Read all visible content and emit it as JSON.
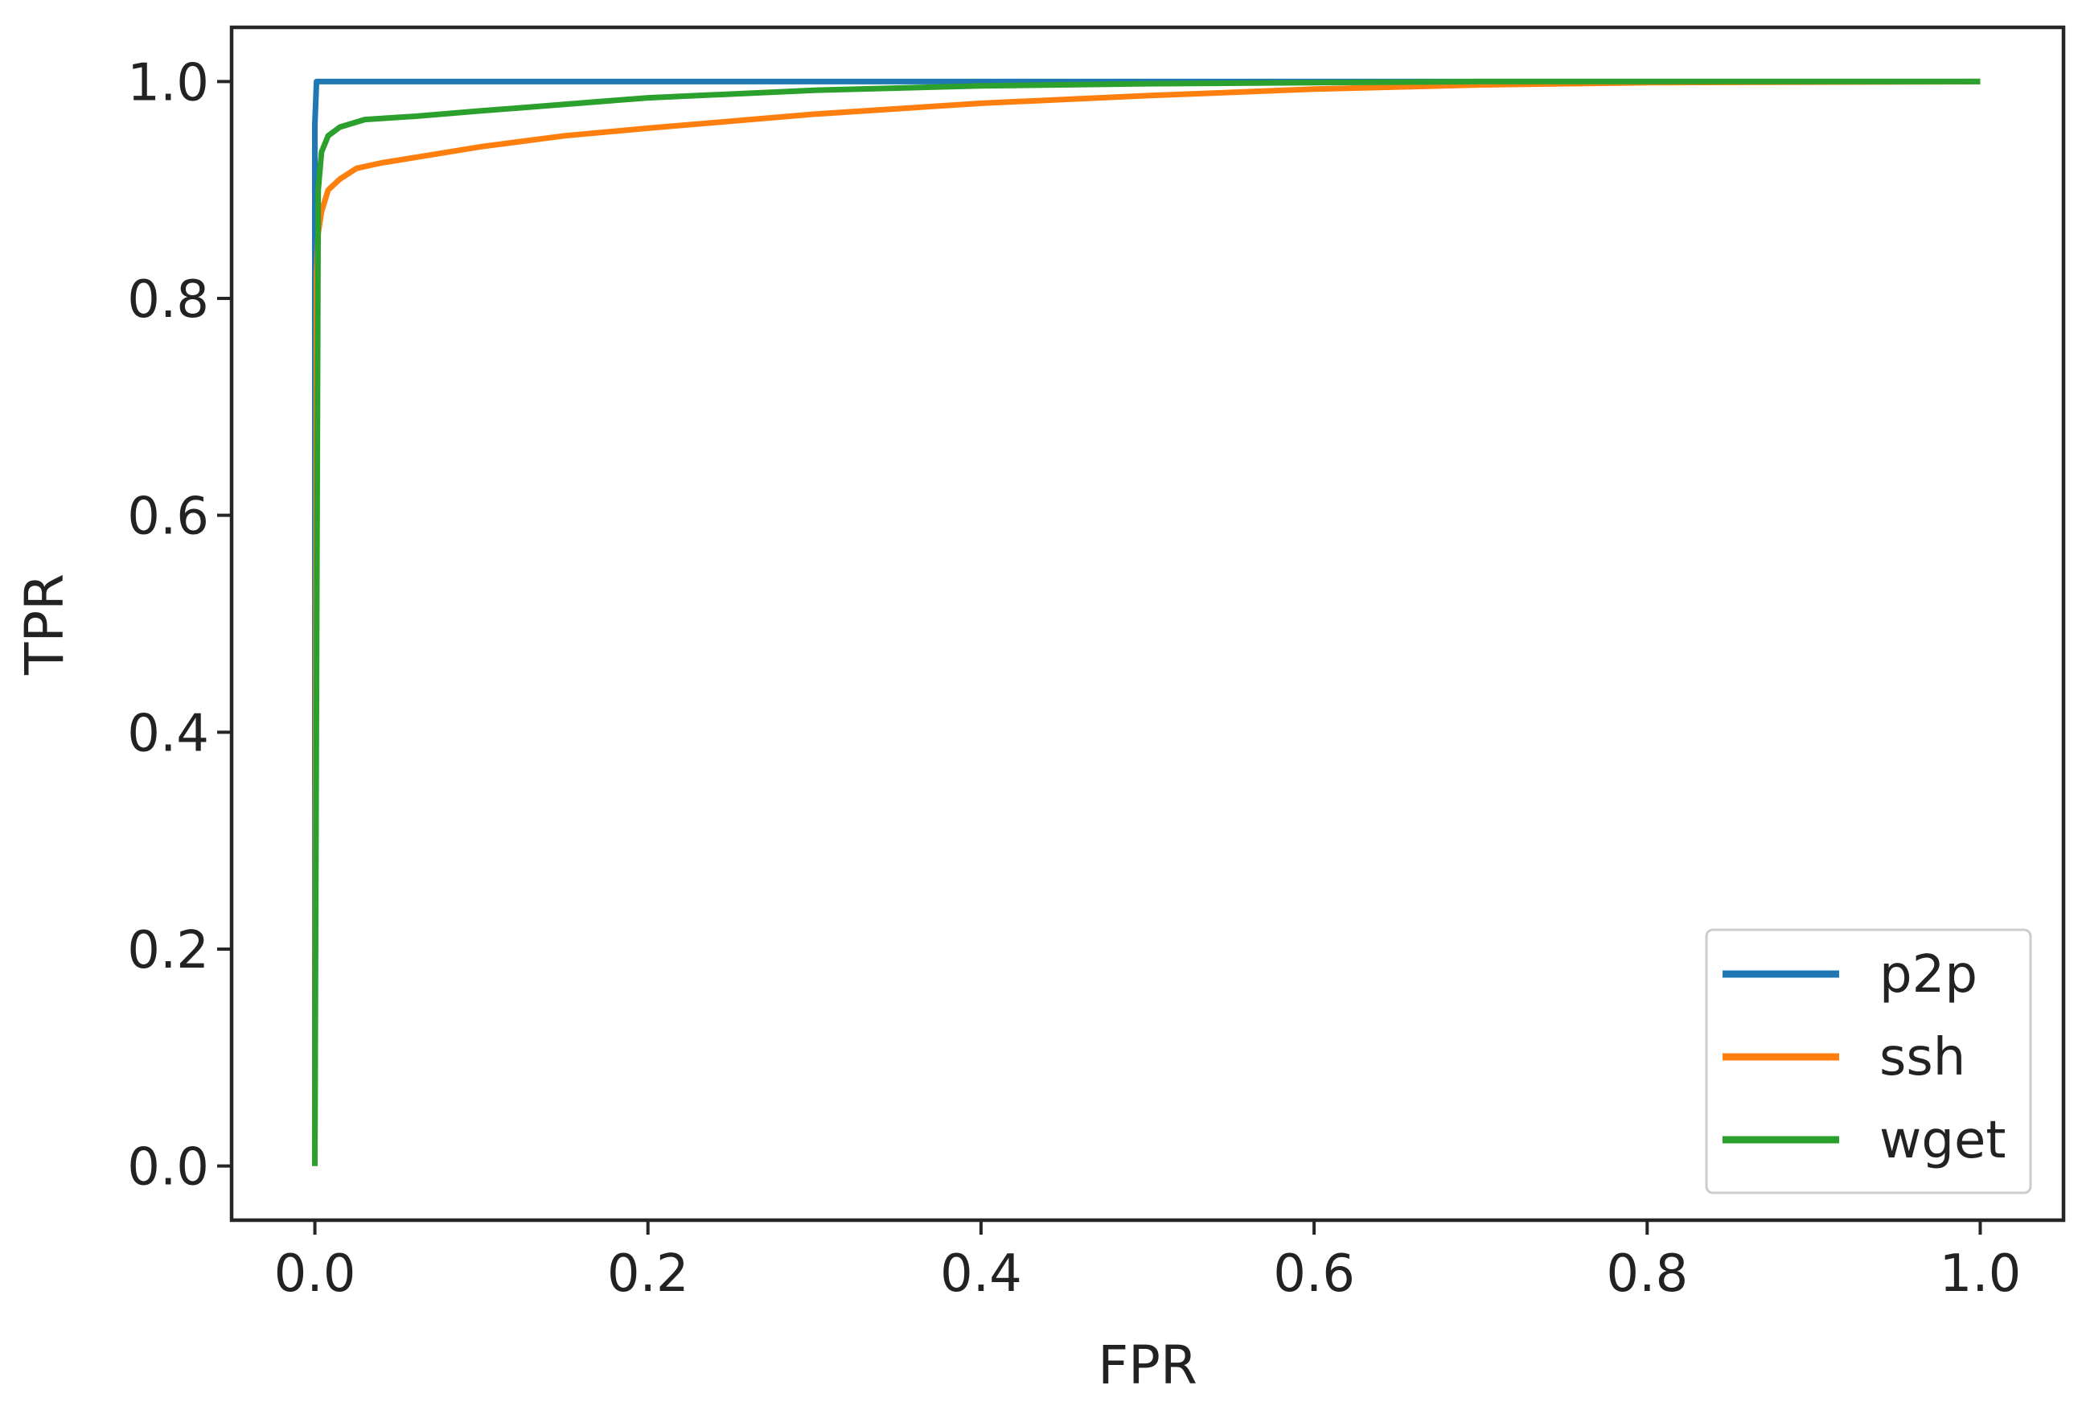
{
  "chart_data": {
    "type": "line",
    "title": "",
    "xlabel": "FPR",
    "ylabel": "TPR",
    "xlim": [
      -0.05,
      1.05
    ],
    "ylim": [
      -0.05,
      1.05
    ],
    "xticks": [
      0.0,
      0.2,
      0.4,
      0.6,
      0.8,
      1.0
    ],
    "yticks": [
      0.0,
      0.2,
      0.4,
      0.6,
      0.8,
      1.0
    ],
    "xtick_labels": [
      "0.0",
      "0.2",
      "0.4",
      "0.6",
      "0.8",
      "1.0"
    ],
    "ytick_labels": [
      "0.0",
      "0.2",
      "0.4",
      "0.6",
      "0.8",
      "1.0"
    ],
    "grid": false,
    "legend_position": "lower-right",
    "series": [
      {
        "name": "p2p",
        "color": "#1f77b4",
        "x": [
          0.0,
          0.0,
          0.0,
          0.001,
          1.0
        ],
        "y": [
          0.0,
          0.9,
          0.96,
          1.0,
          1.0
        ]
      },
      {
        "name": "ssh",
        "color": "#ff7f0e",
        "x": [
          0.0,
          0.001,
          0.002,
          0.004,
          0.008,
          0.015,
          0.025,
          0.04,
          0.06,
          0.1,
          0.15,
          0.2,
          0.3,
          0.4,
          0.5,
          0.6,
          0.7,
          0.8,
          1.0
        ],
        "y": [
          0.0,
          0.82,
          0.86,
          0.88,
          0.9,
          0.91,
          0.92,
          0.925,
          0.93,
          0.94,
          0.95,
          0.957,
          0.97,
          0.98,
          0.987,
          0.993,
          0.997,
          0.999,
          1.0
        ]
      },
      {
        "name": "wget",
        "color": "#2ca02c",
        "x": [
          0.0,
          0.002,
          0.004,
          0.008,
          0.015,
          0.03,
          0.06,
          0.1,
          0.2,
          0.3,
          0.4,
          0.5,
          0.6,
          0.7,
          1.0
        ],
        "y": [
          0.0,
          0.9,
          0.935,
          0.95,
          0.958,
          0.965,
          0.968,
          0.973,
          0.985,
          0.992,
          0.996,
          0.998,
          0.999,
          1.0,
          1.0
        ]
      }
    ]
  }
}
